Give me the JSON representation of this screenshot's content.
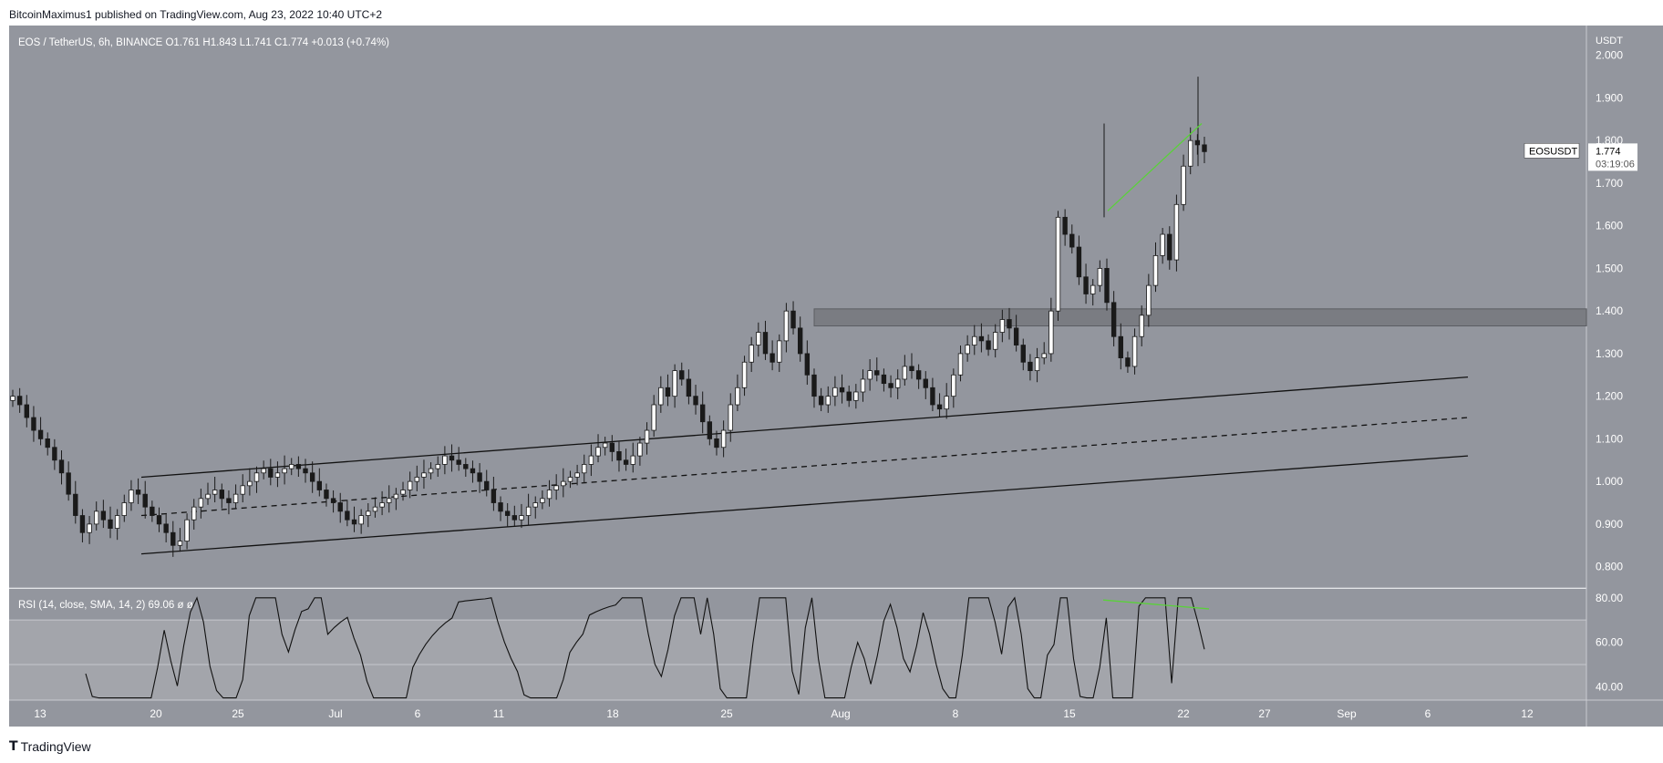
{
  "publisher_line": "BitcoinMaximus1 published on TradingView.com, Aug 23, 2022 10:40 UTC+2",
  "footer": {
    "brand": "TradingView",
    "logo_icon": "tradingview-logo-icon"
  },
  "colors": {
    "background": "#93969e",
    "rsi_band": "#a3a5ab",
    "candle": "#1a1a1a",
    "annotation_green": "#5ad13a",
    "resistance_zone": "#7a7c82"
  },
  "chart_data": [
    {
      "type": "candlestick",
      "title": "EOS / TetherUS, 6h, BINANCE",
      "ohlc": {
        "O": "1.761",
        "H": "1.843",
        "L": "1.741",
        "C": "1.774",
        "change": "+0.013 (+0.74%)"
      },
      "y_unit": "USDT",
      "ylim": [
        0.75,
        2.07
      ],
      "yticks": [
        "2.000",
        "1.900",
        "1.800",
        "1.700",
        "1.600",
        "1.500",
        "1.400",
        "1.300",
        "1.200",
        "1.100",
        "1.000",
        "0.900",
        "0.800"
      ],
      "x_labels": [
        "13",
        "20",
        "25",
        "Jul",
        "6",
        "11",
        "18",
        "25",
        "Aug",
        "8",
        "15",
        "22",
        "27",
        "Sep",
        "6",
        "12"
      ],
      "price_label": {
        "symbol": "EOSUSDT",
        "price": "1.774",
        "countdown": "03:19:06"
      },
      "resistance_zone": [
        1.365,
        1.405
      ],
      "parallel_channel": {
        "upper": [
          1.01,
          1.245
        ],
        "middle": [
          0.92,
          1.15
        ],
        "lower": [
          0.83,
          1.06
        ]
      },
      "green_trendline": [
        1.635,
        1.84
      ],
      "closes": [
        1.2,
        1.18,
        1.15,
        1.12,
        1.1,
        1.08,
        1.05,
        1.02,
        0.97,
        0.92,
        0.88,
        0.9,
        0.93,
        0.91,
        0.89,
        0.92,
        0.95,
        0.98,
        0.97,
        0.94,
        0.92,
        0.9,
        0.88,
        0.85,
        0.86,
        0.91,
        0.94,
        0.96,
        0.97,
        0.98,
        0.96,
        0.95,
        0.97,
        0.99,
        1.0,
        1.02,
        1.03,
        1.01,
        1.02,
        1.03,
        1.04,
        1.03,
        1.02,
        1.0,
        0.98,
        0.96,
        0.95,
        0.93,
        0.91,
        0.9,
        0.92,
        0.93,
        0.94,
        0.95,
        0.96,
        0.97,
        0.98,
        1.0,
        1.01,
        1.02,
        1.03,
        1.04,
        1.06,
        1.05,
        1.04,
        1.03,
        1.02,
        1.0,
        0.98,
        0.95,
        0.93,
        0.92,
        0.91,
        0.92,
        0.94,
        0.95,
        0.96,
        0.98,
        0.99,
        1.0,
        1.01,
        1.02,
        1.04,
        1.06,
        1.08,
        1.09,
        1.07,
        1.05,
        1.04,
        1.06,
        1.09,
        1.12,
        1.18,
        1.22,
        1.2,
        1.26,
        1.24,
        1.2,
        1.18,
        1.14,
        1.1,
        1.08,
        1.12,
        1.18,
        1.22,
        1.28,
        1.32,
        1.35,
        1.3,
        1.28,
        1.33,
        1.4,
        1.36,
        1.3,
        1.25,
        1.2,
        1.18,
        1.2,
        1.22,
        1.21,
        1.19,
        1.21,
        1.24,
        1.26,
        1.25,
        1.23,
        1.22,
        1.24,
        1.27,
        1.26,
        1.24,
        1.22,
        1.18,
        1.17,
        1.2,
        1.25,
        1.3,
        1.32,
        1.34,
        1.33,
        1.31,
        1.35,
        1.38,
        1.36,
        1.32,
        1.28,
        1.26,
        1.29,
        1.3,
        1.4,
        1.62,
        1.58,
        1.55,
        1.48,
        1.44,
        1.46,
        1.5,
        1.42,
        1.34,
        1.29,
        1.27,
        1.34,
        1.39,
        1.46,
        1.53,
        1.58,
        1.52,
        1.65,
        1.74,
        1.8,
        1.79,
        1.774
      ],
      "rsi": {
        "label": "RSI (14, close, SMA, 14, 2)",
        "value": "69.06",
        "extra": "ø ø",
        "ylim": [
          34,
          84
        ],
        "yticks": [
          "80.00",
          "60.00",
          "40.00"
        ],
        "band": [
          30,
          70
        ],
        "divergence_line": [
          79,
          75
        ]
      }
    }
  ]
}
